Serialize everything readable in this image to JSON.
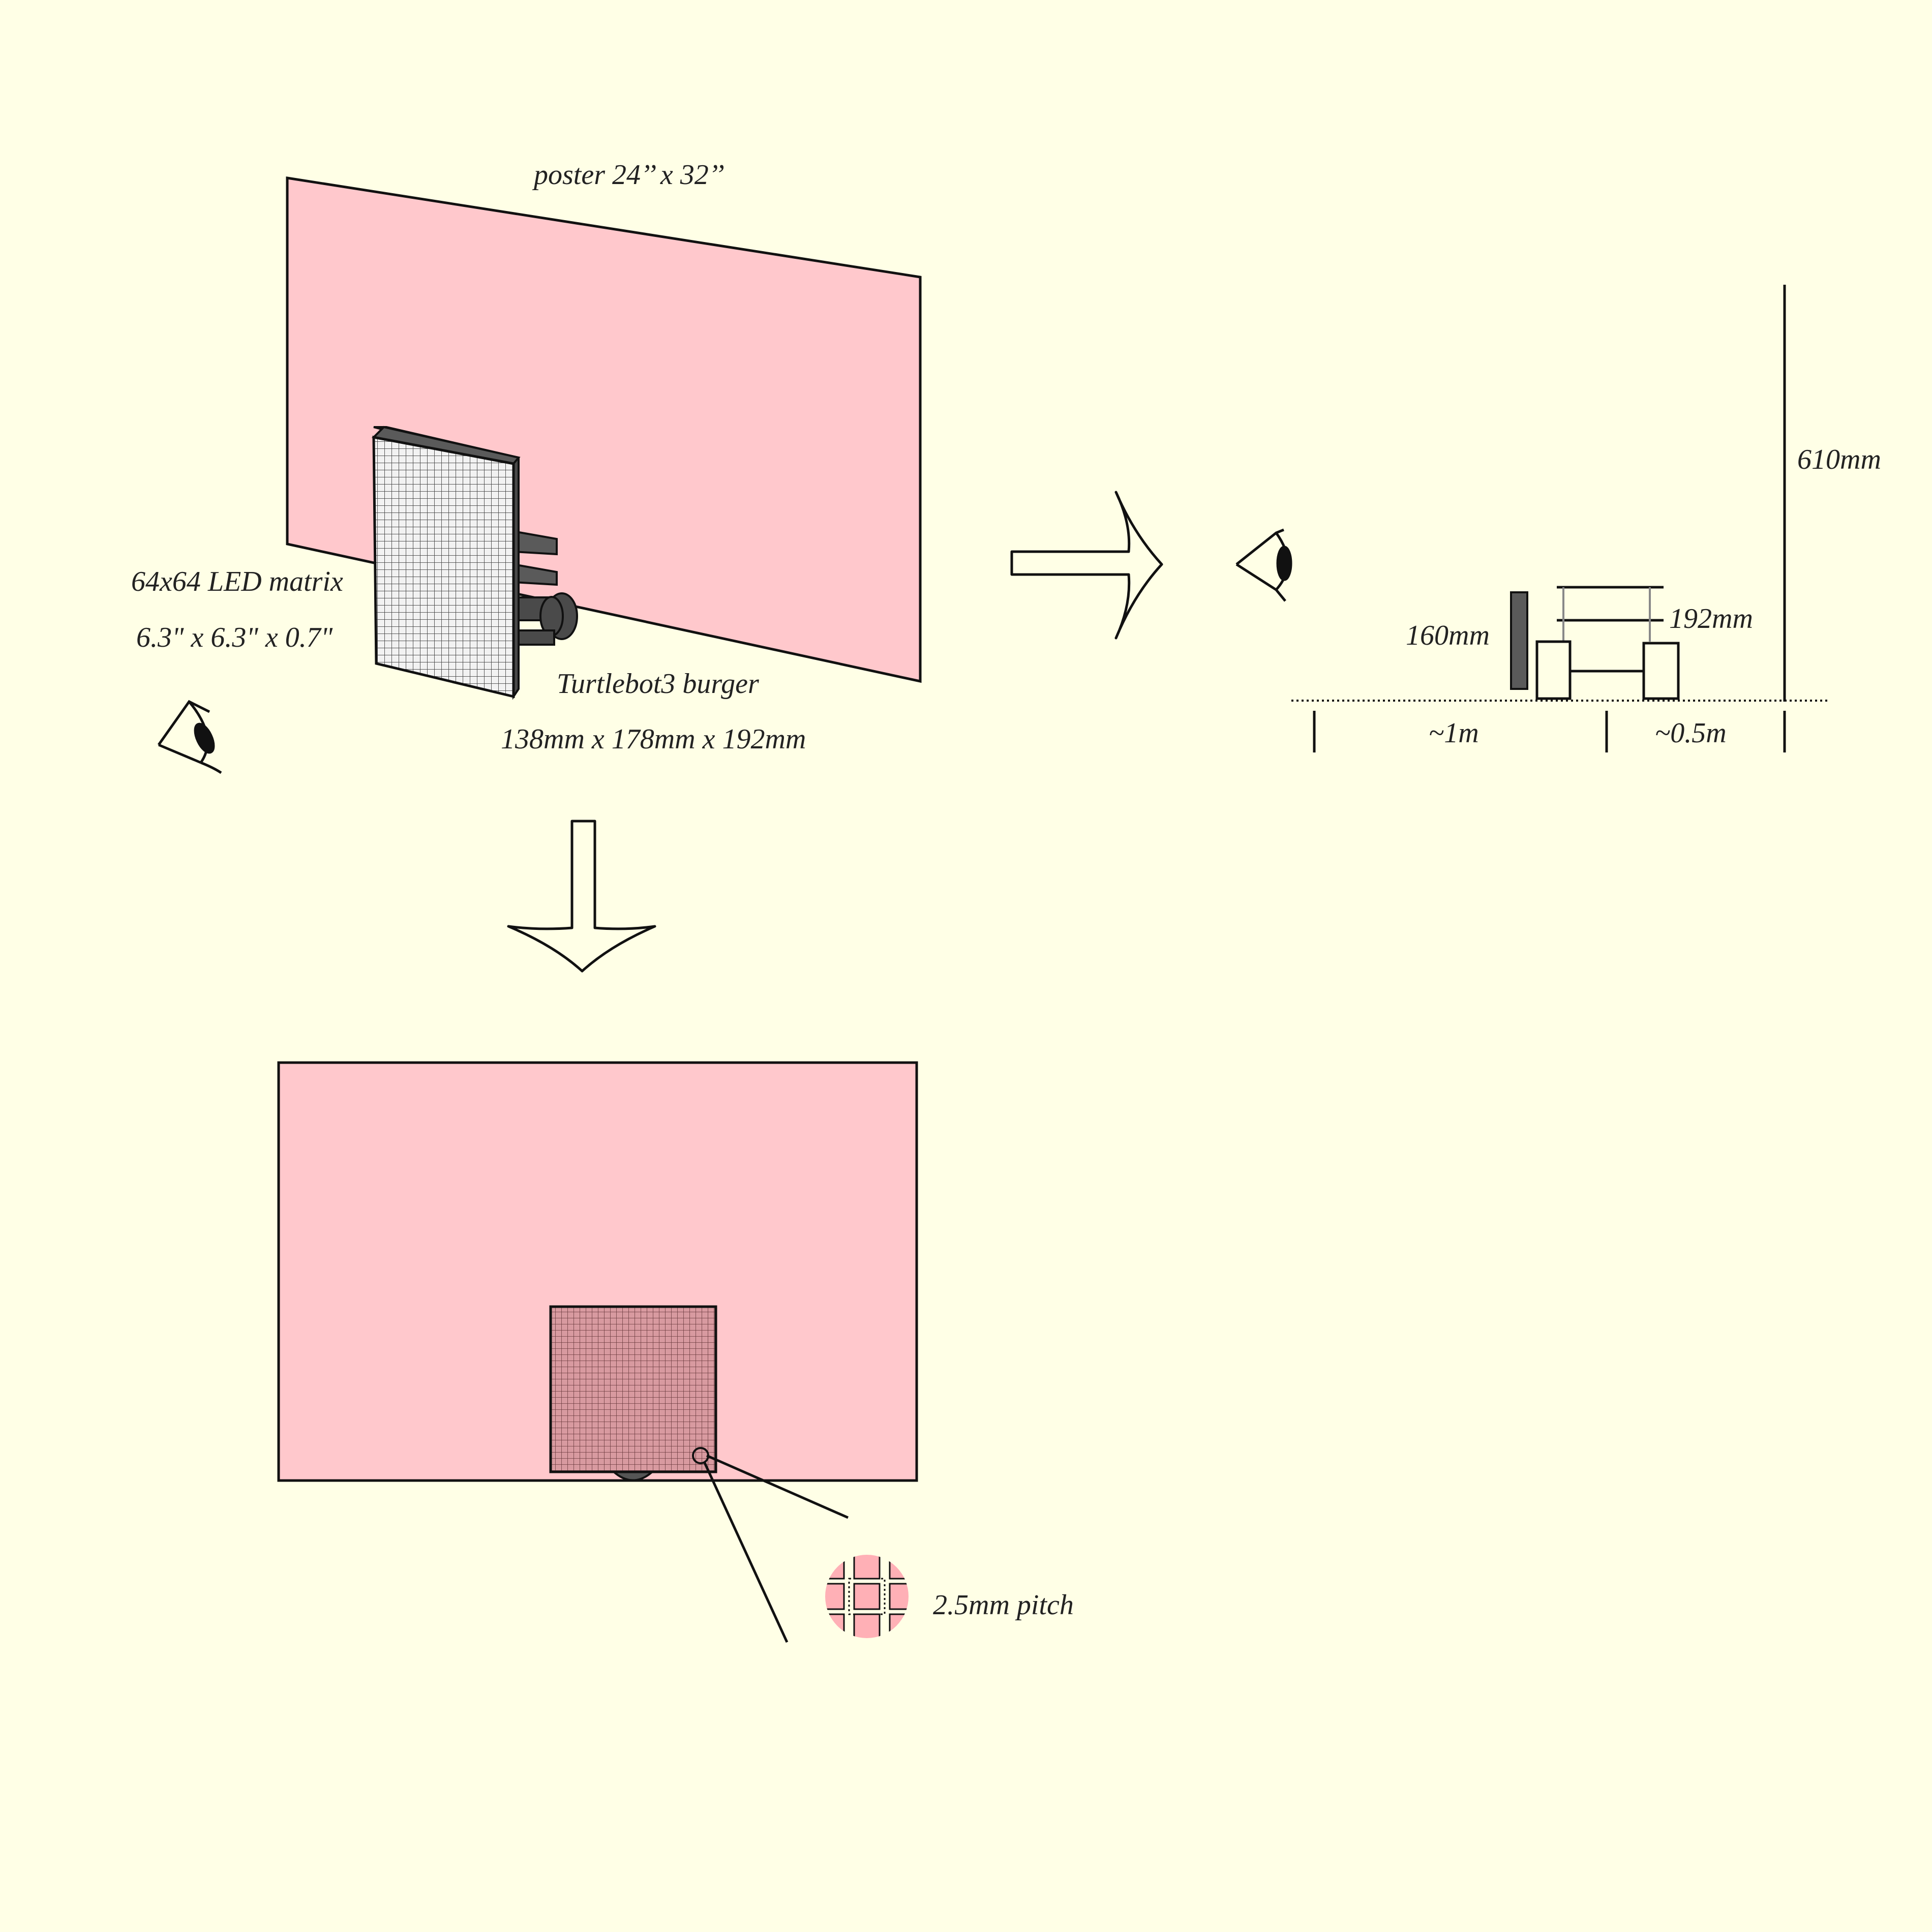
{
  "labels": {
    "poster": "poster 24’’ x 32’’",
    "matrix_name": "64x64 LED matrix",
    "matrix_size": "6.3\" x 6.3\" x 0.7\"",
    "robot_name": "Turtlebot3 burger",
    "robot_size": "138mm x 178mm x 192mm",
    "poster_height": "610mm",
    "matrix_height": "160mm",
    "robot_height": "192mm",
    "distance_viewer": "~1m",
    "distance_poster": "~0.5m",
    "pitch": "2.5mm pitch"
  },
  "icons": [
    "eye-icon",
    "arrow-right-icon",
    "arrow-down-icon",
    "magnifier-detail-icon"
  ],
  "colors": {
    "background": "#ffffe6",
    "poster": "#ffc8cc",
    "matrix_grid": "#d89aa0",
    "device_dark": "#5a5a5a",
    "stroke": "#111111"
  }
}
